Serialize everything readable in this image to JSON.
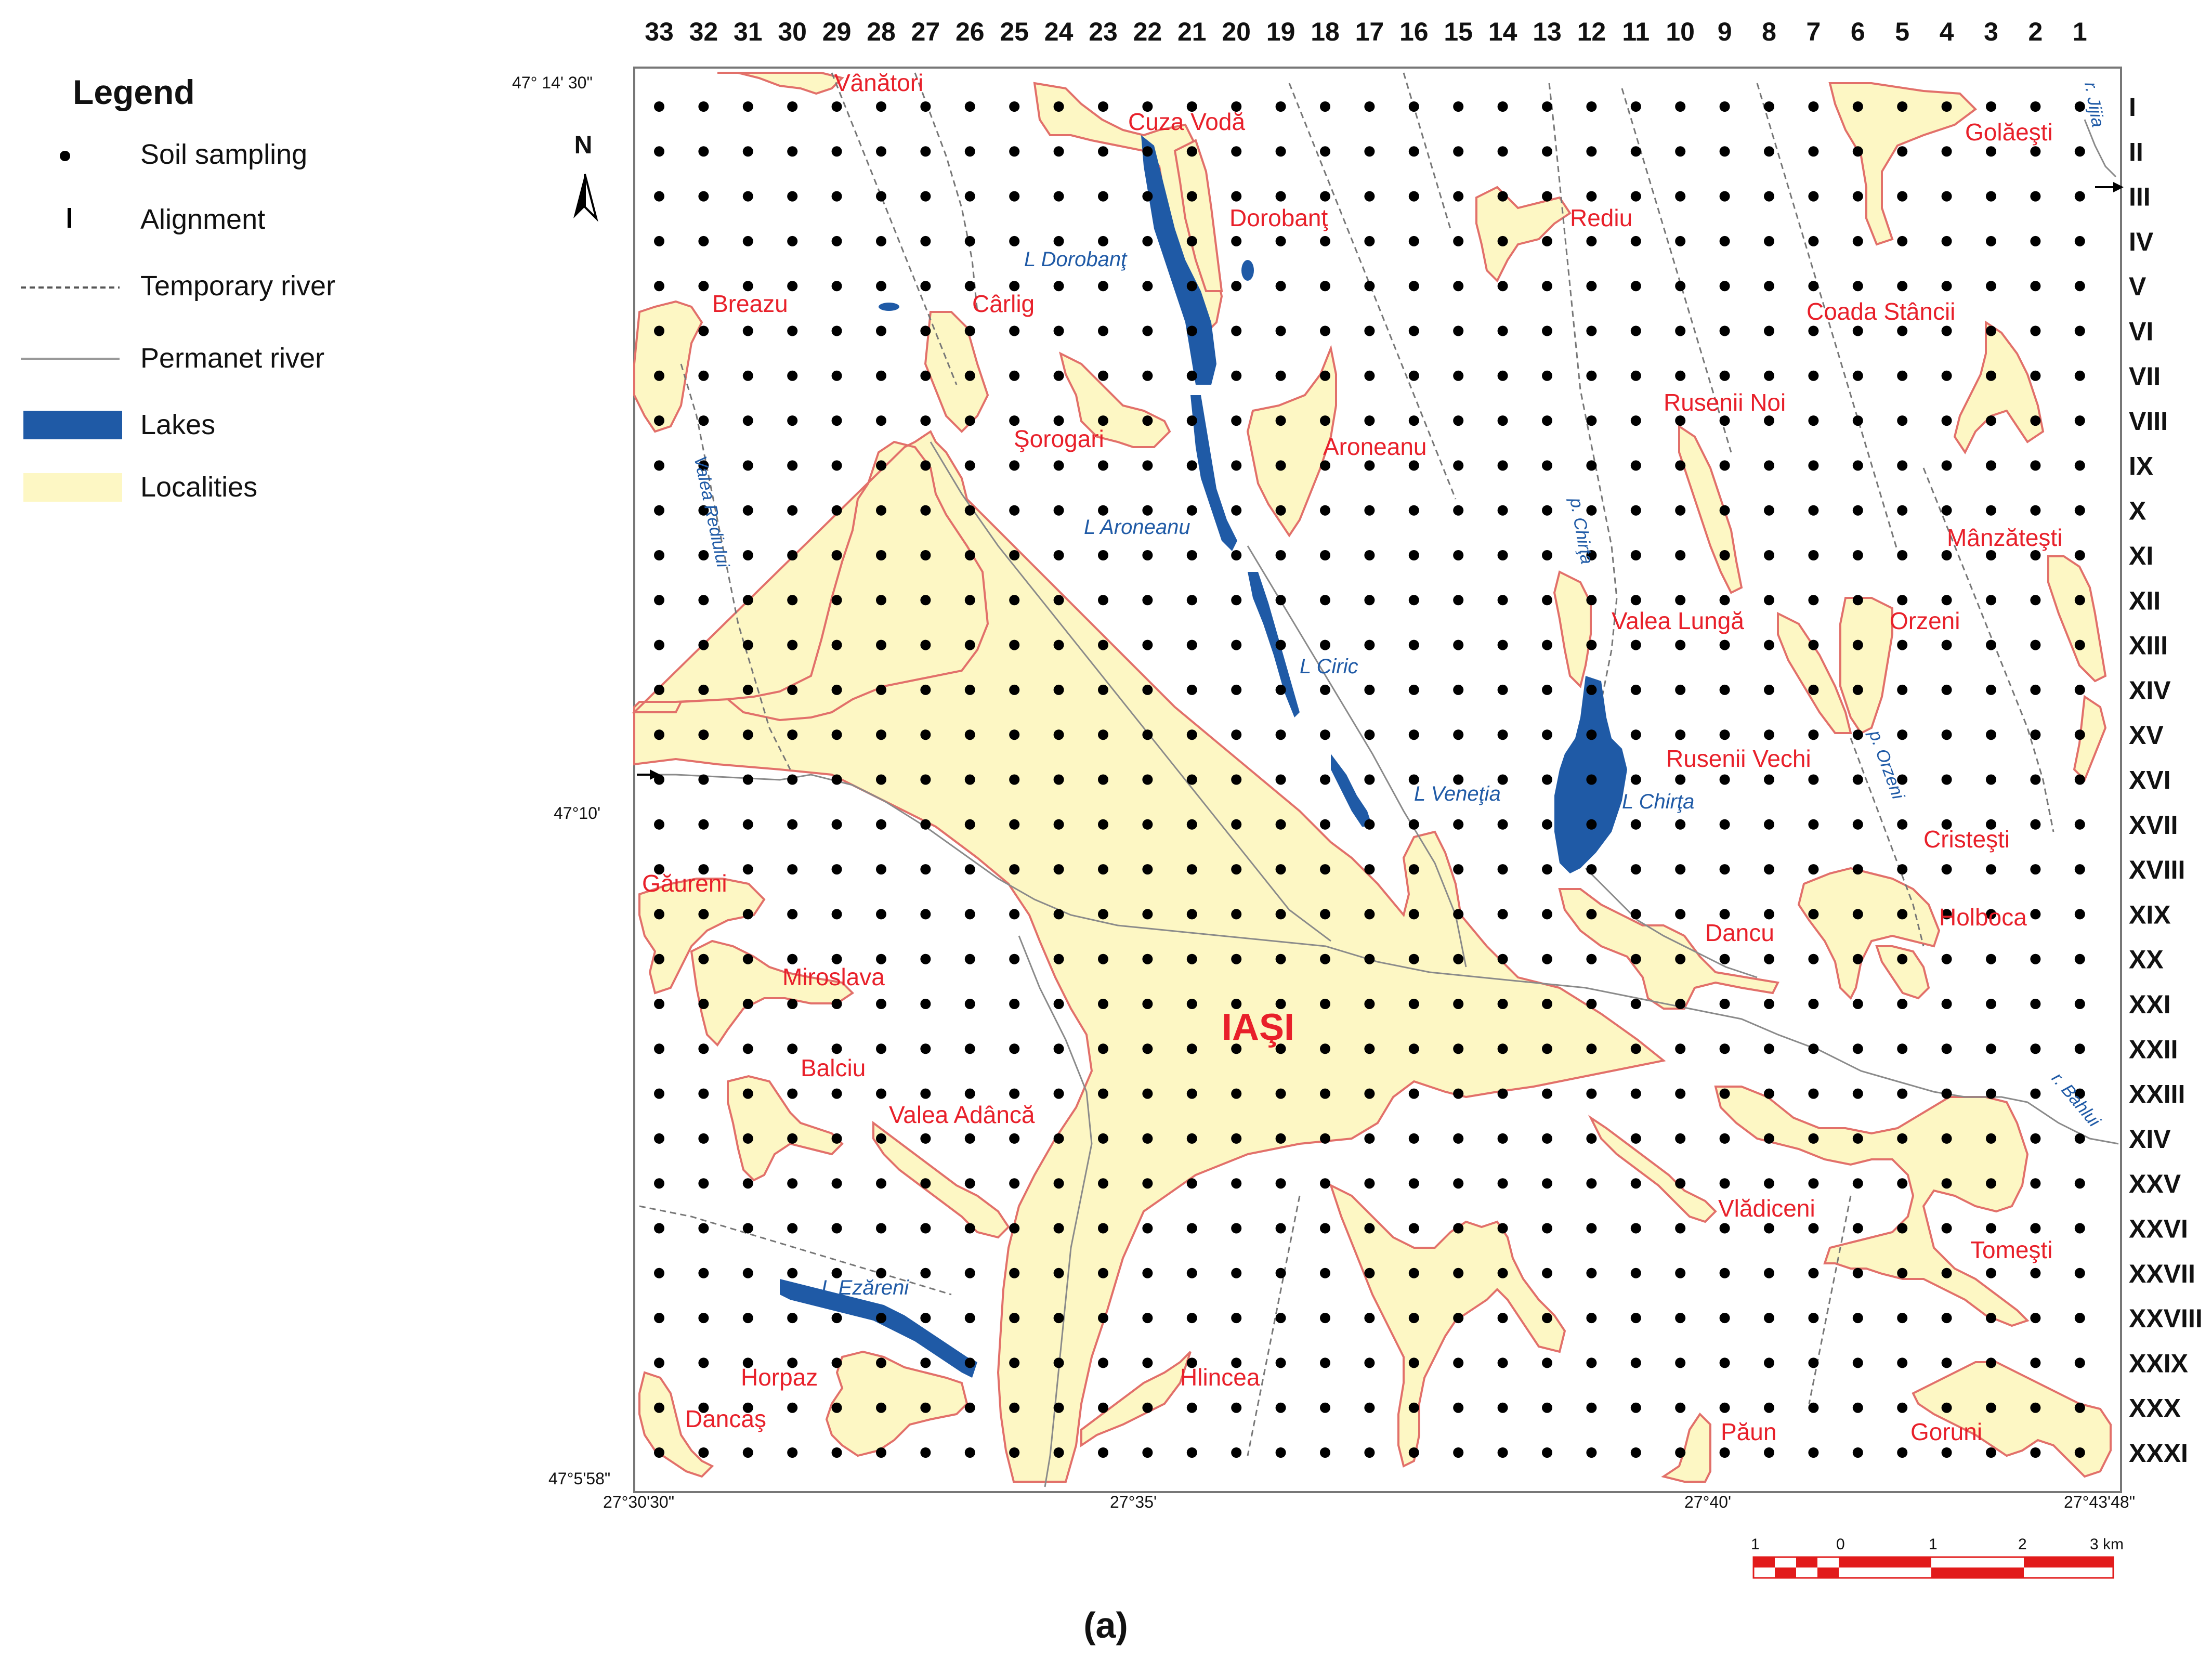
{
  "legend": {
    "title": "Legend",
    "items": [
      {
        "label": "Soil sampling",
        "symbol": "dot"
      },
      {
        "label": "Alignment",
        "symbol": "I"
      },
      {
        "label": "Temporary river",
        "symbol": "dashed-line"
      },
      {
        "label": "Permanet river",
        "symbol": "solid-line"
      },
      {
        "label": "Lakes",
        "symbol": "blue-fill"
      },
      {
        "label": "Localities",
        "symbol": "yellow-fill"
      }
    ]
  },
  "north": "N",
  "columns": [
    "33",
    "32",
    "31",
    "30",
    "29",
    "28",
    "27",
    "26",
    "25",
    "24",
    "23",
    "22",
    "21",
    "20",
    "19",
    "18",
    "17",
    "16",
    "15",
    "14",
    "13",
    "12",
    "11",
    "10",
    "9",
    "8",
    "7",
    "6",
    "5",
    "4",
    "3",
    "2",
    "1"
  ],
  "rows": [
    "I",
    "II",
    "III",
    "IV",
    "V",
    "VI",
    "VII",
    "VIII",
    "IX",
    "X",
    "XI",
    "XII",
    "XIII",
    "XIV",
    "XV",
    "XVI",
    "XVII",
    "XVIII",
    "XIX",
    "XX",
    "XXI",
    "XXII",
    "XXIII",
    "XIV",
    "XXV",
    "XXVI",
    "XXVII",
    "XXVIII",
    "XXIX",
    "XXX",
    "XXXI"
  ],
  "coords": {
    "top_left": "47° 14' 30\"",
    "mid_left": "47°10'",
    "bottom_left": "47°5'58\"",
    "bottom_x1": "27°30'30\"",
    "bottom_x2": "27°35'",
    "bottom_x3": "27°40'",
    "bottom_x4": "27°43'48\""
  },
  "city": "IAŞI",
  "places": [
    "Vânători",
    "Cuza Vodă",
    "Golăeşti",
    "Dorobanţ",
    "Rediu",
    "Breazu",
    "Cârlig",
    "Coada Stâncii",
    "Şorogari",
    "Aroneanu",
    "Rusenii Noi",
    "Mânzăteşti",
    "Valea Lungă",
    "Orzeni",
    "Rusenii Vechi",
    "Cristeşti",
    "Găureni",
    "Holboca",
    "Dancu",
    "Miroslava",
    "Balciu",
    "Valea Adâncă",
    "Vlădiceni",
    "Tomeşti",
    "Horpaz",
    "Hlincea",
    "Dancaş",
    "Păun",
    "Goruni"
  ],
  "lakes": [
    "L Dorobanţ",
    "L Aroneanu",
    "L Ciric",
    "L Veneţia",
    "L Chirţa",
    "L Ezăreni"
  ],
  "rivers": [
    "Valea Rediului",
    "p. Chirţa",
    "p. Orzeni",
    "r. Bahlui",
    "r. Jijia"
  ],
  "scale": {
    "ticks": [
      "1",
      "0",
      "1",
      "2",
      "3 km"
    ]
  },
  "caption": "(a)",
  "colors": {
    "locality_fill": "#fdf7c4",
    "locality_stroke": "#e2706a",
    "lake": "#1f5aa6",
    "label_red": "#e8202a",
    "river_gray": "#8a8a8a",
    "scale_red": "#e21b1b"
  }
}
